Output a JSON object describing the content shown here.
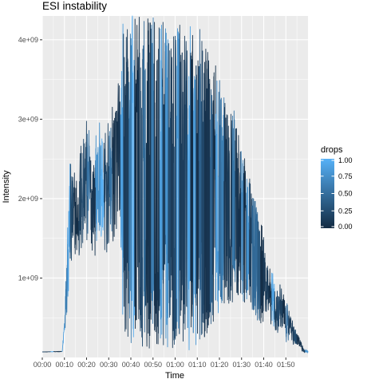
{
  "chart_data": {
    "type": "line",
    "title": "ESI instability",
    "xlabel": "Time",
    "ylabel": "Intensity",
    "x_tick_labels": [
      "00:00",
      "00:10",
      "00:20",
      "00:30",
      "00:40",
      "00:50",
      "01:00",
      "01:10",
      "01:20",
      "01:30",
      "01:40",
      "01:50"
    ],
    "x_tick_minutes": [
      0,
      10,
      20,
      30,
      40,
      50,
      60,
      70,
      80,
      90,
      100,
      110
    ],
    "xlim_minutes": [
      0,
      120
    ],
    "y_ticks": [
      1000000000,
      2000000000,
      3000000000,
      4000000000
    ],
    "y_tick_labels": [
      "1e+09",
      "2e+09",
      "3e+09",
      "4e+09"
    ],
    "ylim": [
      0,
      4300000000
    ],
    "grid": true,
    "legend": {
      "title": "drops",
      "placement": "right",
      "breaks": [
        0.0,
        0.25,
        0.5,
        0.75,
        1.0
      ],
      "labels": [
        "0.00",
        "0.25",
        "0.50",
        "0.75",
        "1.00"
      ],
      "color_low": "#132B43",
      "color_high": "#56B1F7"
    },
    "panel_background": "#EBEBEB",
    "grid_color": "#FFFFFF",
    "envelope": {
      "time_min": [
        0,
        9,
        10,
        12,
        14,
        16,
        18,
        20,
        22,
        24,
        26,
        28,
        30,
        32,
        34,
        36,
        38,
        40,
        42,
        44,
        46,
        48,
        50,
        52,
        54,
        56,
        58,
        60,
        62,
        64,
        66,
        68,
        70,
        72,
        74,
        76,
        78,
        80,
        82,
        84,
        86,
        88,
        90,
        92,
        94,
        96,
        98,
        100,
        102,
        104,
        106,
        108,
        110,
        112,
        114,
        116,
        118,
        120
      ],
      "base_low": [
        0.07,
        0.07,
        0.25,
        0.45,
        0.9,
        0.95,
        1.0,
        1.0,
        1.05,
        1.0,
        1.0,
        1.0,
        1.0,
        1.05,
        1.1,
        0.3,
        0.15,
        0.1,
        0.08,
        0.08,
        0.08,
        0.08,
        0.08,
        0.08,
        0.08,
        0.08,
        0.08,
        0.08,
        0.08,
        0.08,
        0.08,
        0.1,
        0.15,
        0.2,
        0.25,
        0.3,
        0.35,
        0.45,
        0.55,
        0.6,
        0.7,
        0.7,
        0.75,
        0.65,
        0.6,
        0.5,
        0.45,
        0.4,
        0.35,
        0.3,
        0.25,
        0.2,
        0.15,
        0.12,
        0.1,
        0.08,
        0.05,
        0.05
      ],
      "base_high": [
        0.07,
        0.08,
        0.6,
        2.95,
        2.6,
        2.5,
        3.3,
        3.4,
        2.9,
        3.1,
        3.5,
        3.0,
        3.3,
        3.6,
        3.8,
        4.3,
        4.3,
        4.3,
        4.3,
        4.3,
        4.3,
        4.3,
        4.3,
        4.3,
        4.3,
        4.3,
        4.3,
        4.3,
        4.2,
        4.1,
        4.2,
        4.3,
        4.2,
        4.1,
        3.9,
        3.8,
        3.7,
        3.6,
        3.3,
        3.0,
        3.2,
        2.9,
        2.6,
        2.5,
        2.2,
        2.0,
        1.8,
        1.6,
        1.4,
        1.2,
        1.1,
        1.0,
        0.8,
        0.7,
        0.45,
        0.3,
        0.12,
        0.1
      ]
    }
  }
}
